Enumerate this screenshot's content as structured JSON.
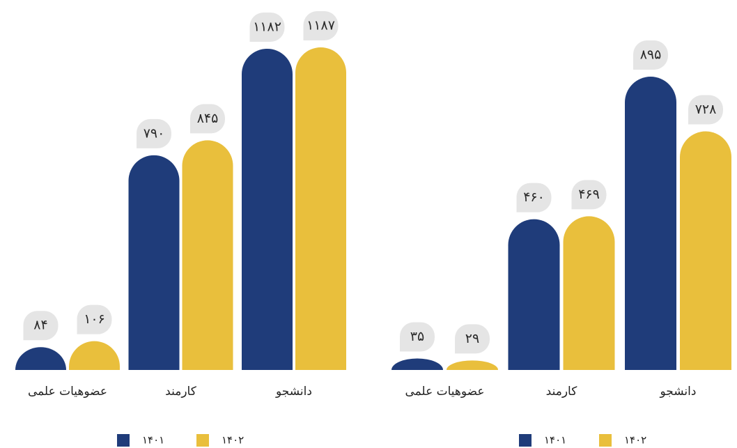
{
  "chart_data": [
    {
      "type": "bar",
      "categories": [
        "عضوهیات علمی",
        "کارمند",
        "دانشجو"
      ],
      "series": [
        {
          "name": "۱۴۰۱",
          "color": "#1f3c7a",
          "values": [
            84,
            790,
            1182
          ],
          "value_labels": [
            "۸۴",
            "۷۹۰",
            "۱۱۸۲"
          ]
        },
        {
          "name": "۱۴۰۲",
          "color": "#e9bf3c",
          "values": [
            106,
            845,
            1187
          ],
          "value_labels": [
            "۱۰۶",
            "۸۴۵",
            "۱۱۸۷"
          ]
        }
      ]
    },
    {
      "type": "bar",
      "categories": [
        "عضوهیات علمی",
        "کارمند",
        "دانشجو"
      ],
      "series": [
        {
          "name": "۱۴۰۱",
          "color": "#1f3c7a",
          "values": [
            35,
            460,
            895
          ],
          "value_labels": [
            "۳۵",
            "۴۶۰",
            "۸۹۵"
          ]
        },
        {
          "name": "۱۴۰۲",
          "color": "#e9bf3c",
          "values": [
            29,
            469,
            728
          ],
          "value_labels": [
            "۲۹",
            "۴۶۹",
            "۷۲۸"
          ]
        }
      ]
    }
  ]
}
